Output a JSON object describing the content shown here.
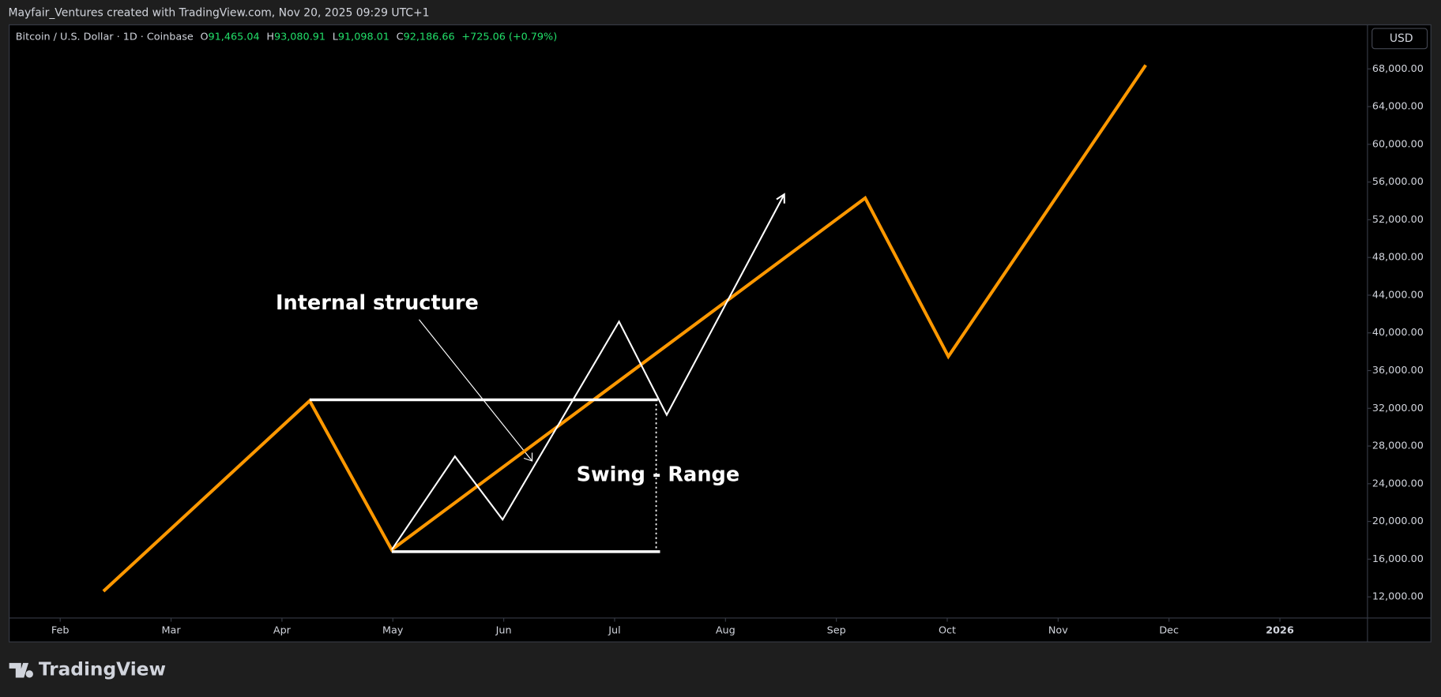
{
  "header": {
    "attribution": "Mayfair_Ventures created with TradingView.com, Nov 20, 2025 09:29 UTC+1"
  },
  "legend": {
    "symbol": "Bitcoin / U.S. Dollar · 1D · Coinbase",
    "open_label": "O",
    "open": "91,465.04",
    "high_label": "H",
    "high": "93,080.91",
    "low_label": "L",
    "low": "91,098.01",
    "close_label": "C",
    "close": "92,186.66",
    "change": "+725.06 (+0.79%)"
  },
  "currency_button": "USD",
  "brand": "TradingView",
  "chart_data": {
    "type": "line",
    "xlim": [
      1.54,
      13.79
    ],
    "ylim": [
      9760,
      72675
    ],
    "xticks": [
      {
        "value": 2,
        "label": "Feb"
      },
      {
        "value": 3,
        "label": "Mar"
      },
      {
        "value": 4,
        "label": "Apr"
      },
      {
        "value": 5,
        "label": "May"
      },
      {
        "value": 6,
        "label": "Jun"
      },
      {
        "value": 7,
        "label": "Jul"
      },
      {
        "value": 8,
        "label": "Aug"
      },
      {
        "value": 9,
        "label": "Sep"
      },
      {
        "value": 10,
        "label": "Oct"
      },
      {
        "value": 11,
        "label": "Nov"
      },
      {
        "value": 12,
        "label": "Dec"
      },
      {
        "value": 13,
        "label": "2026"
      }
    ],
    "yticks": [
      {
        "value": 12000,
        "label": "12,000.00"
      },
      {
        "value": 16000,
        "label": "16,000.00"
      },
      {
        "value": 20000,
        "label": "20,000.00"
      },
      {
        "value": 24000,
        "label": "24,000.00"
      },
      {
        "value": 28000,
        "label": "28,000.00"
      },
      {
        "value": 32000,
        "label": "32,000.00"
      },
      {
        "value": 36000,
        "label": "36,000.00"
      },
      {
        "value": 40000,
        "label": "40,000.00"
      },
      {
        "value": 44000,
        "label": "44,000.00"
      },
      {
        "value": 48000,
        "label": "48,000.00"
      },
      {
        "value": 52000,
        "label": "52,000.00"
      },
      {
        "value": 56000,
        "label": "56,000.00"
      },
      {
        "value": 60000,
        "label": "60,000.00"
      },
      {
        "value": 64000,
        "label": "64,000.00"
      },
      {
        "value": 68000,
        "label": "68,000.00"
      }
    ],
    "series": [
      {
        "color": "#ff9800",
        "x": [
          2.39,
          4.25,
          4.99,
          9.26,
          10.01,
          11.79
        ],
        "values": [
          12600,
          32800,
          17000,
          54300,
          37500,
          68400
        ]
      },
      {
        "color": "#ffffff",
        "x": [
          4.99,
          5.56,
          5.99,
          7.04,
          7.47,
          8.53
        ],
        "values": [
          17000,
          26900,
          20200,
          41200,
          31300,
          54700
        ]
      }
    ],
    "hlines": [
      {
        "color": "#ffffff",
        "x": [
          4.25,
          7.39
        ],
        "value": 32900
      },
      {
        "color": "#ffffff",
        "x": [
          4.99,
          7.41
        ],
        "value": 16800
      }
    ],
    "annotations": [
      {
        "text": "Internal structure"
      },
      {
        "text": "Swing - Range"
      }
    ]
  }
}
